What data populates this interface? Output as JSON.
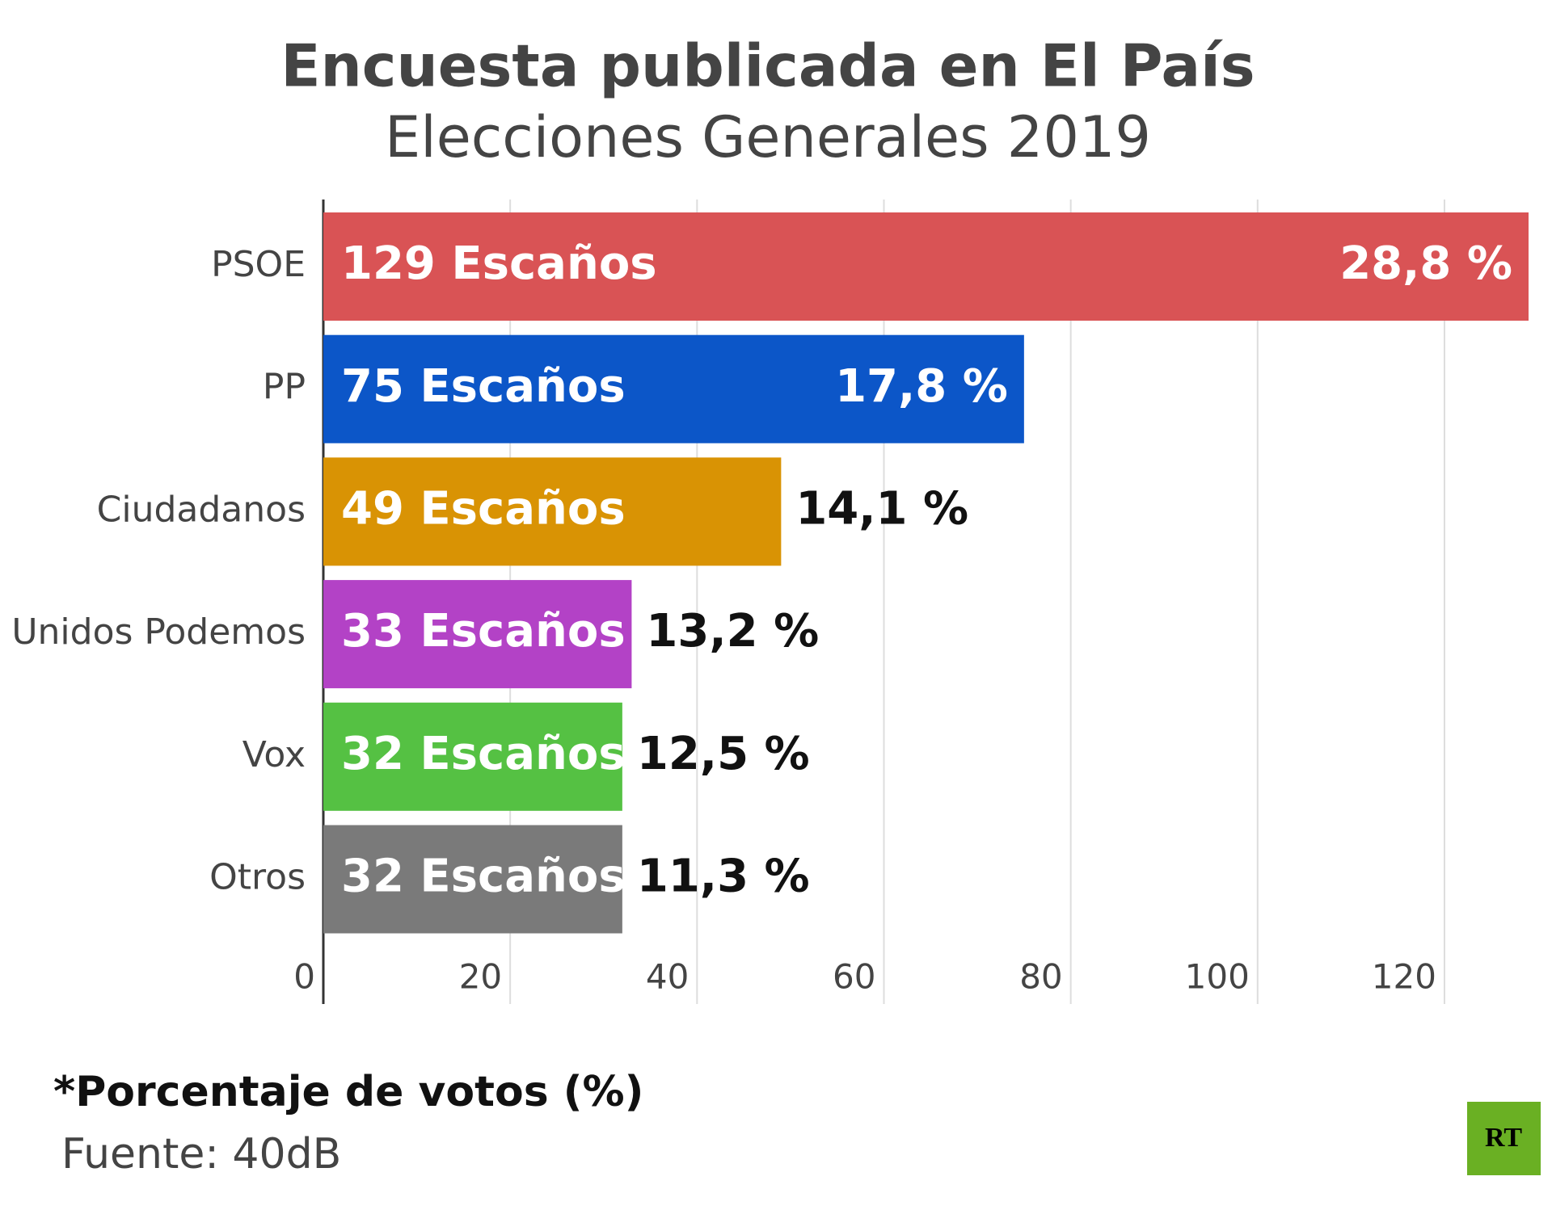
{
  "chart_data": {
    "type": "bar",
    "orientation": "horizontal",
    "title": "Encuesta publicada en El País",
    "subtitle": "Elecciones Generales 2019",
    "categories": [
      "PSOE",
      "PP",
      "Ciudadanos",
      "Unidos Podemos",
      "Vox",
      "Otros"
    ],
    "values": [
      129,
      75,
      49,
      33,
      32,
      32
    ],
    "value_labels": [
      "129 Escaños",
      "75 Escaños",
      "49 Escaños",
      "33 Escaños",
      "32 Escaños",
      "32 Escaños"
    ],
    "colors": [
      "#d95355",
      "#0c56c8",
      "#d99304",
      "#b342c6",
      "#55c143",
      "#7a7a7a"
    ],
    "percentages": [
      28.8,
      17.8,
      14.1,
      13.2,
      12.5,
      11.3
    ],
    "percentage_labels": [
      "28,8 %",
      "17,8 %",
      "14,1 %",
      "13,2 %",
      "12,5 %",
      "11,3 %"
    ],
    "xlim": [
      0,
      129
    ],
    "xticks": [
      0,
      20,
      40,
      60,
      80,
      100,
      120
    ],
    "grid": true,
    "footnote": "*Porcentaje de votos (%)",
    "source": "Fuente: 40dB",
    "logo": "RT"
  }
}
